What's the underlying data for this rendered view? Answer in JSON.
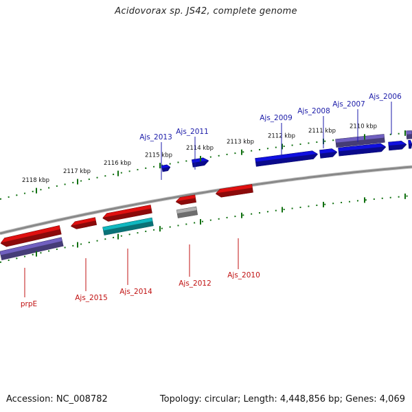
{
  "title": "Acidovorax sp. JS42, complete genome",
  "footer": {
    "accession": "Accession: NC_008782",
    "summary": "Topology: circular; Length: 4,448,856 bp; Genes: 4,069"
  },
  "colors": {
    "forward_gene": "#1010e0",
    "reverse_gene": "#e01010",
    "rrna": "#7060c0",
    "teal": "#10b8c0",
    "pseudo": "#b0b0b0",
    "tick": "#107010",
    "backbone": "#888888",
    "label_forward": "#1a1aa8",
    "label_reverse": "#c01010"
  },
  "ticks": {
    "top_labels": [
      "2118 kbp",
      "2117 kbp",
      "2116 kbp",
      "2115 kbp",
      "2114 kbp",
      "2113 kbp",
      "2112 kbp",
      "2111 kbp",
      "2110 kbp"
    ]
  },
  "genes": {
    "top_labels": [
      "Ajs_2013",
      "Ajs_2011",
      "Ajs_2009",
      "Ajs_2008",
      "Ajs_2007",
      "Ajs_2006"
    ],
    "bottom_labels": [
      "prpE",
      "Ajs_2015",
      "Ajs_2014",
      "Ajs_2012",
      "Ajs_2010"
    ]
  }
}
